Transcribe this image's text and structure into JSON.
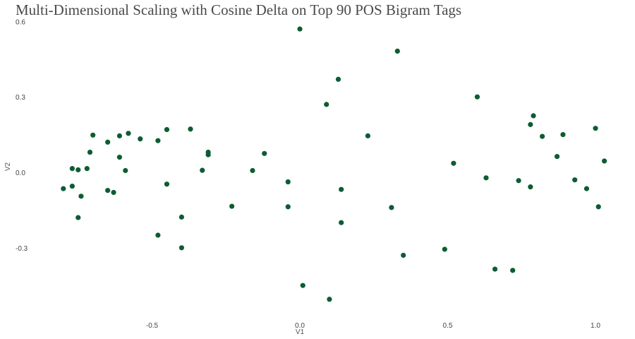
{
  "chart_data": {
    "type": "scatter",
    "title": "Multi-Dimensional Scaling with Cosine Delta on Top 90 POS Bigram Tags",
    "xlabel": "V1",
    "ylabel": "V2",
    "xlim": [
      -0.81,
      1.05
    ],
    "ylim": [
      -0.57,
      0.62
    ],
    "x_ticks": [
      -0.5,
      0.0,
      0.5,
      1.0
    ],
    "x_tick_labels": [
      "-0.5",
      "0.0",
      "0.5",
      "1.0"
    ],
    "y_ticks": [
      -0.3,
      0.0,
      0.3,
      0.6
    ],
    "y_tick_labels": [
      "-0.3",
      "0.0",
      "0.3",
      "0.6"
    ],
    "grid": false,
    "legend": "none",
    "point_color": "#0d5c33",
    "series": [
      {
        "x": [
          -0.8,
          -0.77,
          -0.77,
          -0.75,
          -0.75,
          -0.74,
          -0.72,
          -0.71,
          -0.7,
          -0.65,
          -0.65,
          -0.63,
          -0.61,
          -0.61,
          -0.59,
          -0.58,
          -0.54,
          -0.48,
          -0.48,
          -0.45,
          -0.45,
          -0.4,
          -0.4,
          -0.37,
          -0.33,
          -0.31,
          -0.31,
          -0.23,
          -0.16,
          -0.12,
          -0.04,
          -0.04,
          0.0,
          0.01,
          0.09,
          0.1,
          0.13,
          0.14,
          0.14,
          0.23,
          0.31,
          0.35,
          0.33,
          0.49,
          0.52,
          0.6,
          0.63,
          0.66,
          0.72,
          0.74,
          0.78,
          0.78,
          0.79,
          0.82,
          0.87,
          0.89,
          0.93,
          0.97,
          1.0,
          1.01,
          1.03
        ],
        "y": [
          -0.065,
          0.015,
          -0.055,
          0.01,
          -0.18,
          -0.095,
          0.015,
          0.08,
          0.148,
          0.12,
          -0.072,
          -0.08,
          0.06,
          0.145,
          0.007,
          0.155,
          0.133,
          0.126,
          -0.25,
          -0.047,
          0.17,
          -0.178,
          -0.3,
          0.172,
          0.008,
          0.07,
          0.08,
          -0.135,
          0.007,
          0.075,
          -0.038,
          -0.137,
          0.57,
          -0.45,
          0.27,
          -0.505,
          0.37,
          -0.2,
          -0.068,
          0.145,
          -0.14,
          -0.33,
          0.482,
          -0.306,
          0.036,
          0.3,
          -0.022,
          -0.385,
          -0.39,
          -0.033,
          0.19,
          -0.058,
          0.225,
          0.143,
          0.063,
          0.15,
          -0.03,
          -0.065,
          0.175,
          -0.137,
          0.045
        ]
      }
    ]
  }
}
